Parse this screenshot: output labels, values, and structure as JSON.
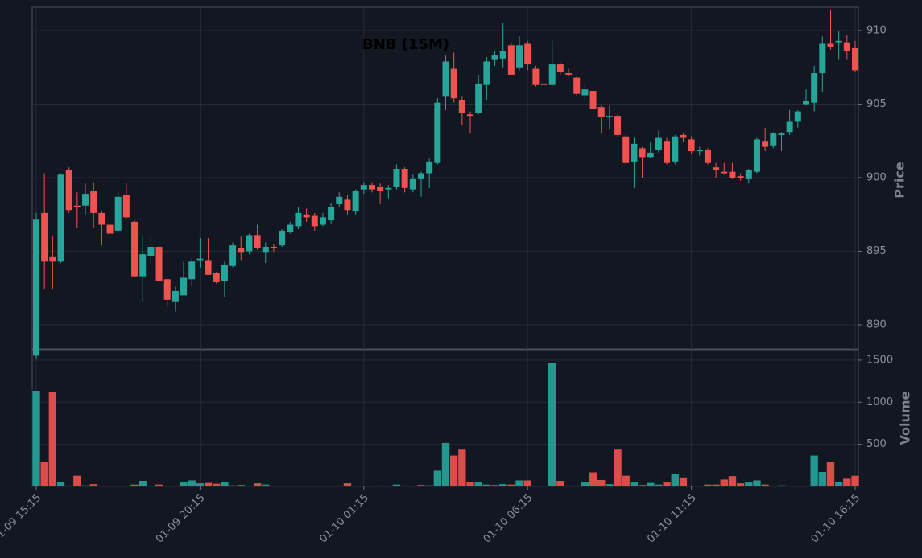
{
  "chart_data": {
    "type": "candlestick",
    "title": "BNB (15M)",
    "categories": [
      "01-09 15:15",
      null,
      null,
      null,
      null,
      null,
      null,
      null,
      null,
      null,
      null,
      null,
      null,
      null,
      null,
      null,
      null,
      null,
      null,
      null,
      "01-09 20:15",
      null,
      null,
      null,
      null,
      null,
      null,
      null,
      null,
      null,
      null,
      null,
      null,
      null,
      null,
      null,
      null,
      null,
      null,
      null,
      "01-10 01:15",
      null,
      null,
      null,
      null,
      null,
      null,
      null,
      null,
      null,
      null,
      null,
      null,
      null,
      null,
      null,
      null,
      null,
      null,
      null,
      "01-10 06:15",
      null,
      null,
      null,
      null,
      null,
      null,
      null,
      null,
      null,
      null,
      null,
      null,
      null,
      null,
      null,
      null,
      null,
      null,
      null,
      "01-10 11:15",
      null,
      null,
      null,
      null,
      null,
      null,
      null,
      null,
      null,
      null,
      null,
      null,
      null,
      null,
      null,
      null,
      null,
      null,
      null,
      "01-10 16:15"
    ],
    "open": [
      887.9,
      897.6,
      894.6,
      894.3,
      900.5,
      898.1,
      898.1,
      899.1,
      897.6,
      896.8,
      896.4,
      898.8,
      897.0,
      893.3,
      894.7,
      895.3,
      893.1,
      891.6,
      892.0,
      893.1,
      894.4,
      894.4,
      893.5,
      893.0,
      894.0,
      895.2,
      895.0,
      896.1,
      894.9,
      895.3,
      895.4,
      896.3,
      896.7,
      897.5,
      897.4,
      896.8,
      897.1,
      898.2,
      898.5,
      897.7,
      899.2,
      899.5,
      899.4,
      899.2,
      899.4,
      900.6,
      899.2,
      899.9,
      900.3,
      901.0,
      905.5,
      907.4,
      905.3,
      904.3,
      904.4,
      906.3,
      908.0,
      908.1,
      909.0,
      907.5,
      909.1,
      907.4,
      906.4,
      906.3,
      907.7,
      907.1,
      906.8,
      905.6,
      905.9,
      904.8,
      904.1,
      904.2,
      902.8,
      901.1,
      902.0,
      901.4,
      901.9,
      902.5,
      901.1,
      902.9,
      902.6,
      901.8,
      901.9,
      900.7,
      900.4,
      900.4,
      900.1,
      899.9,
      900.4,
      902.5,
      902.2,
      902.9,
      903.1,
      903.8,
      905.0,
      905.1,
      907.1,
      909.1,
      909.2,
      909.2,
      908.8
    ],
    "high": [
      897.6,
      900.3,
      896.0,
      900.3,
      900.7,
      899.0,
      899.6,
      899.7,
      897.7,
      897.2,
      899.1,
      899.6,
      897.1,
      896.0,
      896.0,
      895.4,
      893.2,
      892.6,
      894.3,
      894.5,
      895.9,
      895.9,
      893.6,
      894.3,
      895.6,
      896.0,
      896.2,
      896.8,
      895.6,
      895.5,
      896.5,
      897.0,
      898.0,
      897.9,
      897.6,
      897.6,
      898.3,
      899.0,
      898.8,
      899.2,
      899.7,
      899.7,
      899.6,
      899.5,
      900.9,
      900.7,
      900.2,
      900.4,
      901.3,
      905.4,
      908.3,
      908.5,
      905.5,
      904.5,
      907.0,
      908.2,
      908.6,
      910.5,
      909.2,
      909.6,
      909.3,
      907.6,
      906.7,
      909.3,
      907.8,
      907.4,
      906.9,
      906.4,
      906.0,
      904.9,
      904.9,
      904.3,
      902.9,
      902.7,
      902.1,
      902.4,
      903.2,
      902.7,
      902.9,
      903.0,
      902.8,
      902.1,
      902.0,
      901.0,
      901.0,
      901.0,
      900.3,
      900.6,
      902.7,
      903.4,
      903.1,
      903.1,
      904.6,
      904.6,
      906.0,
      907.6,
      909.6,
      911.4,
      910.0,
      909.7,
      909.3
    ],
    "low": [
      887.7,
      892.4,
      892.4,
      894.2,
      897.6,
      896.6,
      897.5,
      896.6,
      895.4,
      896.0,
      896.3,
      897.2,
      893.2,
      891.6,
      894.1,
      893.0,
      891.2,
      890.9,
      892.0,
      892.6,
      893.9,
      893.4,
      892.8,
      891.9,
      893.9,
      894.4,
      894.8,
      895.1,
      894.2,
      894.9,
      895.3,
      896.2,
      896.5,
      897.0,
      896.4,
      896.7,
      896.9,
      898.0,
      897.5,
      897.5,
      898.9,
      899.0,
      898.2,
      898.6,
      899.2,
      899.0,
      899.0,
      898.7,
      899.3,
      900.9,
      904.6,
      905.1,
      903.6,
      903.0,
      904.3,
      905.3,
      907.6,
      907.5,
      907.0,
      907.3,
      907.3,
      906.2,
      905.8,
      906.2,
      907.0,
      906.9,
      905.5,
      905.2,
      904.0,
      903.0,
      903.3,
      902.8,
      900.9,
      899.3,
      900.0,
      901.3,
      901.7,
      900.9,
      900.9,
      902.4,
      901.6,
      901.5,
      900.9,
      900.0,
      900.2,
      899.9,
      899.8,
      899.6,
      900.3,
      901.8,
      902.0,
      901.8,
      902.9,
      903.4,
      904.9,
      904.5,
      905.8,
      908.7,
      908.0,
      908.0,
      907.2
    ],
    "close": [
      897.2,
      894.3,
      894.3,
      900.2,
      897.8,
      898.0,
      898.9,
      897.6,
      896.8,
      896.2,
      898.7,
      897.3,
      893.3,
      894.8,
      895.3,
      893.0,
      891.7,
      892.3,
      893.2,
      894.3,
      894.5,
      893.4,
      892.9,
      894.1,
      895.4,
      894.9,
      896.1,
      895.2,
      895.3,
      895.2,
      896.4,
      896.8,
      897.6,
      897.3,
      896.7,
      897.3,
      898.0,
      898.7,
      897.8,
      899.1,
      899.5,
      899.2,
      899.1,
      899.3,
      900.6,
      899.3,
      899.9,
      900.3,
      901.1,
      905.1,
      907.9,
      905.4,
      904.4,
      904.2,
      906.4,
      907.9,
      908.3,
      908.6,
      907.0,
      909.0,
      907.7,
      906.3,
      906.3,
      907.7,
      907.2,
      907.0,
      905.7,
      906.0,
      904.7,
      904.1,
      904.2,
      902.9,
      901.0,
      902.3,
      901.4,
      901.7,
      902.7,
      901.0,
      902.8,
      902.7,
      901.8,
      901.9,
      901.0,
      900.5,
      900.3,
      900.0,
      900.0,
      900.5,
      902.6,
      902.1,
      903.0,
      903.0,
      903.8,
      904.5,
      905.2,
      907.1,
      909.1,
      908.9,
      909.3,
      908.6,
      907.3
    ],
    "volume": [
      1140,
      290,
      1120,
      55,
      10,
      130,
      15,
      30,
      5,
      3,
      3,
      3,
      25,
      70,
      10,
      25,
      8,
      3,
      50,
      75,
      40,
      45,
      35,
      55,
      15,
      20,
      5,
      40,
      25,
      8,
      3,
      3,
      8,
      3,
      3,
      3,
      8,
      3,
      40,
      3,
      10,
      8,
      10,
      10,
      25,
      3,
      10,
      20,
      15,
      190,
      520,
      370,
      440,
      55,
      50,
      25,
      20,
      30,
      25,
      75,
      75,
      3,
      3,
      1470,
      70,
      10,
      10,
      50,
      170,
      80,
      30,
      440,
      130,
      50,
      20,
      45,
      25,
      50,
      150,
      110,
      3,
      3,
      25,
      25,
      85,
      125,
      40,
      50,
      75,
      25,
      5,
      15,
      3,
      8,
      8,
      370,
      175,
      290,
      55,
      95,
      130
    ],
    "up_color": "#26a69a",
    "down_color": "#ef5350",
    "ylim": [
      888.36,
      911.53
    ],
    "yticks": [
      890,
      895,
      900,
      905,
      910
    ],
    "ylabel": "Price",
    "volume_ylim": [
      0,
      1614
    ],
    "volume_yticks": [
      500,
      1000,
      1500
    ],
    "volume_label": "Volume",
    "grid": true
  }
}
